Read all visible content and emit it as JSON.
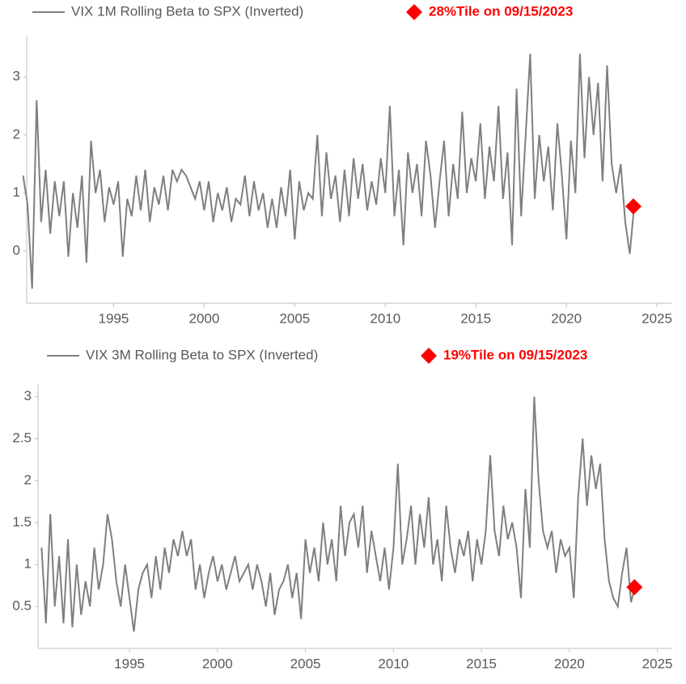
{
  "chart_data": [
    {
      "type": "line",
      "series": [
        {
          "name": "VIX 1M Rolling Beta to SPX (Inverted)",
          "color": "#7f7f7f",
          "values": [
            1.3,
            0.8,
            -0.65,
            2.6,
            0.5,
            1.4,
            0.3,
            1.2,
            0.6,
            1.2,
            -0.1,
            1.0,
            0.4,
            1.3,
            -0.2,
            1.9,
            1.0,
            1.4,
            0.5,
            1.1,
            0.8,
            1.2,
            -0.1,
            0.9,
            0.6,
            1.3,
            0.7,
            1.4,
            0.5,
            1.1,
            0.8,
            1.3,
            0.7,
            1.4,
            1.2,
            1.4,
            1.3,
            1.1,
            0.9,
            1.2,
            0.7,
            1.2,
            0.5,
            1.0,
            0.7,
            1.1,
            0.5,
            0.9,
            0.8,
            1.3,
            0.6,
            1.2,
            0.7,
            1.0,
            0.4,
            0.9,
            0.4,
            1.1,
            0.6,
            1.4,
            0.2,
            1.2,
            0.7,
            1.0,
            0.9,
            2.0,
            0.6,
            1.7,
            0.9,
            1.3,
            0.5,
            1.4,
            0.6,
            1.6,
            0.9,
            1.5,
            0.7,
            1.2,
            0.8,
            1.6,
            1.0,
            2.5,
            0.6,
            1.4,
            0.1,
            1.7,
            1.0,
            1.5,
            0.6,
            1.9,
            1.3,
            0.4,
            1.2,
            1.9,
            0.6,
            1.5,
            0.9,
            2.4,
            1.0,
            1.6,
            1.2,
            2.2,
            0.9,
            1.8,
            1.2,
            2.5,
            0.9,
            1.7,
            0.1,
            2.8,
            0.6,
            2.0,
            3.4,
            0.9,
            2.0,
            1.2,
            1.8,
            0.7,
            2.2,
            1.3,
            0.2,
            1.9,
            1.0,
            3.4,
            1.6,
            3.0,
            2.0,
            2.9,
            1.2,
            3.2,
            1.5,
            1.0,
            1.5,
            0.5,
            -0.05,
            0.8
          ]
        }
      ],
      "x": [
        1990,
        1990.25,
        1990.5,
        1990.75,
        1991,
        1991.25,
        1991.5,
        1991.75,
        1992,
        1992.25,
        1992.5,
        1992.75,
        1993,
        1993.25,
        1993.5,
        1993.75,
        1994,
        1994.25,
        1994.5,
        1994.75,
        1995,
        1995.25,
        1995.5,
        1995.75,
        1996,
        1996.25,
        1996.5,
        1996.75,
        1997,
        1997.25,
        1997.5,
        1997.75,
        1998,
        1998.25,
        1998.5,
        1998.75,
        1999,
        1999.25,
        1999.5,
        1999.75,
        2000,
        2000.25,
        2000.5,
        2000.75,
        2001,
        2001.25,
        2001.5,
        2001.75,
        2002,
        2002.25,
        2002.5,
        2002.75,
        2003,
        2003.25,
        2003.5,
        2003.75,
        2004,
        2004.25,
        2004.5,
        2004.75,
        2005,
        2005.25,
        2005.5,
        2005.75,
        2006,
        2006.25,
        2006.5,
        2006.75,
        2007,
        2007.25,
        2007.5,
        2007.75,
        2008,
        2008.25,
        2008.5,
        2008.75,
        2009,
        2009.25,
        2009.5,
        2009.75,
        2010,
        2010.25,
        2010.5,
        2010.75,
        2011,
        2011.25,
        2011.5,
        2011.75,
        2012,
        2012.25,
        2012.5,
        2012.75,
        2013,
        2013.25,
        2013.5,
        2013.75,
        2014,
        2014.25,
        2014.5,
        2014.75,
        2015,
        2015.25,
        2015.5,
        2015.75,
        2016,
        2016.25,
        2016.5,
        2016.75,
        2017,
        2017.25,
        2017.5,
        2017.75,
        2018,
        2018.25,
        2018.5,
        2018.75,
        2019,
        2019.25,
        2019.5,
        2019.75,
        2020,
        2020.25,
        2020.5,
        2020.75,
        2021,
        2021.25,
        2021.5,
        2021.75,
        2022,
        2022.25,
        2022.5,
        2022.75,
        2023,
        2023.25,
        2023.5,
        2023.75
      ],
      "xlim": [
        1990.2,
        2025.8
      ],
      "xticks": [
        1995,
        2000,
        2005,
        2010,
        2015,
        2020,
        2025
      ],
      "ylim": [
        -0.9,
        3.7
      ],
      "yticks": [
        0,
        1,
        2,
        3
      ],
      "marker": {
        "label": "28%Tile on 09/15/2023",
        "x": 2023.7,
        "y": 0.77,
        "color": "#ff0000"
      }
    },
    {
      "type": "line",
      "series": [
        {
          "name": "VIX 3M Rolling Beta to SPX (Inverted)",
          "color": "#7f7f7f",
          "values": [
            1.2,
            0.3,
            1.6,
            0.5,
            1.1,
            0.3,
            1.3,
            0.25,
            1.0,
            0.4,
            0.8,
            0.5,
            1.2,
            0.7,
            1.0,
            1.6,
            1.3,
            0.8,
            0.5,
            1.0,
            0.6,
            0.2,
            0.7,
            0.9,
            1.0,
            0.6,
            1.1,
            0.7,
            1.2,
            0.9,
            1.3,
            1.1,
            1.4,
            1.1,
            1.3,
            0.7,
            1.0,
            0.6,
            0.9,
            1.1,
            0.8,
            1.0,
            0.7,
            0.9,
            1.1,
            0.8,
            0.9,
            1.0,
            0.7,
            1.0,
            0.8,
            0.5,
            0.9,
            0.4,
            0.7,
            0.8,
            1.0,
            0.6,
            0.9,
            0.35,
            1.3,
            0.9,
            1.2,
            0.8,
            1.5,
            1.0,
            1.3,
            0.8,
            1.7,
            1.1,
            1.5,
            1.6,
            1.2,
            1.7,
            0.9,
            1.4,
            1.1,
            0.8,
            1.2,
            0.7,
            1.2,
            2.2,
            1.0,
            1.3,
            1.7,
            1.0,
            1.6,
            1.2,
            1.8,
            1.0,
            1.3,
            0.8,
            1.7,
            1.2,
            0.9,
            1.3,
            1.1,
            1.4,
            0.8,
            1.3,
            1.0,
            1.4,
            2.3,
            1.4,
            1.1,
            1.7,
            1.3,
            1.5,
            1.2,
            0.6,
            1.9,
            1.2,
            3.0,
            2.0,
            1.4,
            1.2,
            1.4,
            0.9,
            1.3,
            1.1,
            1.2,
            0.6,
            1.8,
            2.5,
            1.7,
            2.3,
            1.9,
            2.2,
            1.3,
            0.8,
            0.6,
            0.5,
            0.9,
            1.2,
            0.55,
            0.75
          ]
        }
      ],
      "x": [
        1990,
        1990.25,
        1990.5,
        1990.75,
        1991,
        1991.25,
        1991.5,
        1991.75,
        1992,
        1992.25,
        1992.5,
        1992.75,
        1993,
        1993.25,
        1993.5,
        1993.75,
        1994,
        1994.25,
        1994.5,
        1994.75,
        1995,
        1995.25,
        1995.5,
        1995.75,
        1996,
        1996.25,
        1996.5,
        1996.75,
        1997,
        1997.25,
        1997.5,
        1997.75,
        1998,
        1998.25,
        1998.5,
        1998.75,
        1999,
        1999.25,
        1999.5,
        1999.75,
        2000,
        2000.25,
        2000.5,
        2000.75,
        2001,
        2001.25,
        2001.5,
        2001.75,
        2002,
        2002.25,
        2002.5,
        2002.75,
        2003,
        2003.25,
        2003.5,
        2003.75,
        2004,
        2004.25,
        2004.5,
        2004.75,
        2005,
        2005.25,
        2005.5,
        2005.75,
        2006,
        2006.25,
        2006.5,
        2006.75,
        2007,
        2007.25,
        2007.5,
        2007.75,
        2008,
        2008.25,
        2008.5,
        2008.75,
        2009,
        2009.25,
        2009.5,
        2009.75,
        2010,
        2010.25,
        2010.5,
        2010.75,
        2011,
        2011.25,
        2011.5,
        2011.75,
        2012,
        2012.25,
        2012.5,
        2012.75,
        2013,
        2013.25,
        2013.5,
        2013.75,
        2014,
        2014.25,
        2014.5,
        2014.75,
        2015,
        2015.25,
        2015.5,
        2015.75,
        2016,
        2016.25,
        2016.5,
        2016.75,
        2017,
        2017.25,
        2017.5,
        2017.75,
        2018,
        2018.25,
        2018.5,
        2018.75,
        2019,
        2019.25,
        2019.5,
        2019.75,
        2020,
        2020.25,
        2020.5,
        2020.75,
        2021,
        2021.25,
        2021.5,
        2021.75,
        2022,
        2022.25,
        2022.5,
        2022.75,
        2023,
        2023.25,
        2023.5,
        2023.75
      ],
      "xlim": [
        1989.8,
        2025.8
      ],
      "xticks": [
        1995,
        2000,
        2005,
        2010,
        2015,
        2020,
        2025
      ],
      "ylim": [
        0,
        3.15
      ],
      "yticks": [
        0.5,
        1,
        1.5,
        2,
        2.5,
        3
      ],
      "marker": {
        "label": "19%Tile on 09/15/2023",
        "x": 2023.7,
        "y": 0.73,
        "color": "#ff0000"
      }
    }
  ]
}
